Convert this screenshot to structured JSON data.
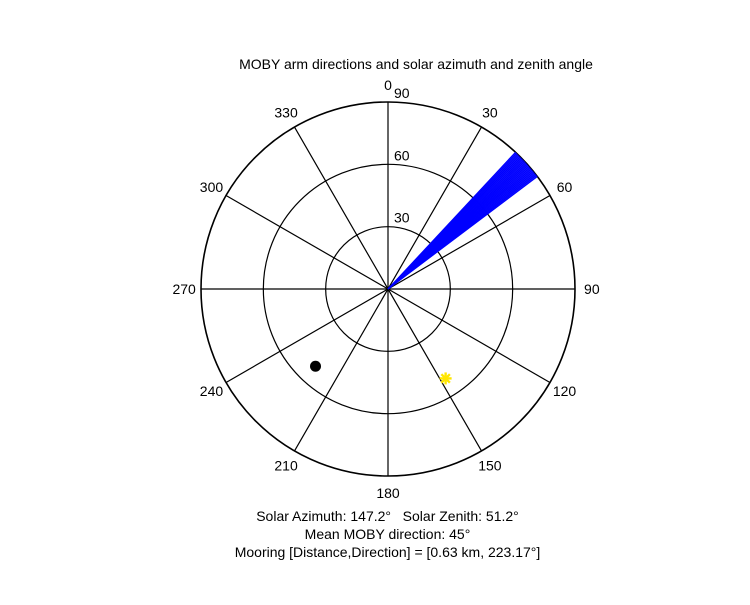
{
  "chart_data": {
    "type": "polar",
    "title": "MOBY arm directions and solar azimuth and zenith angle",
    "angle_ticks": [
      "0",
      "30",
      "60",
      "90",
      "120",
      "150",
      "180",
      "210",
      "240",
      "270",
      "300",
      "330"
    ],
    "radius_ticks": [
      "30",
      "60",
      "90"
    ],
    "rlim": [
      0,
      90
    ],
    "angle_direction": "clockwise",
    "angle_zero": "top",
    "grid": true,
    "arm_directions": {
      "color": "#0000ff",
      "azimuth_range": [
        43,
        53
      ],
      "radius": 90
    },
    "sun": {
      "azimuth": 147.2,
      "zenith": 51.2,
      "color": "#ffe600",
      "marker": "asterisk"
    },
    "mooring": {
      "direction": 223.17,
      "radius": 51,
      "color": "#000000",
      "marker": "circle"
    },
    "captions": {
      "solar": "Solar Azimuth: 147.2°   Solar Zenith: 51.2°",
      "mean": "Mean MOBY direction: 45°",
      "mooring": "Mooring [Distance,Direction] = [0.63 km, 223.17°]"
    }
  }
}
